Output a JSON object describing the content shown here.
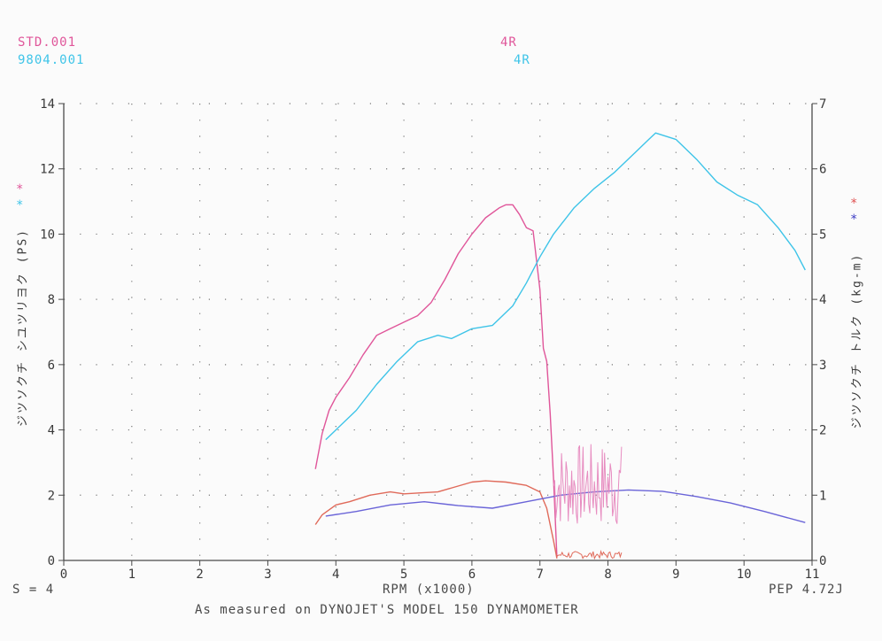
{
  "header": {
    "run1": {
      "file": "STD.001",
      "gear": "4R",
      "color": "#e0569a"
    },
    "run2": {
      "file": "9804.001",
      "gear": "4R",
      "color": "#3ec4e8"
    },
    "mark": "*"
  },
  "footer": {
    "smoothing": "S = 4",
    "xlabel": "RPM (x1000)",
    "pep": "PEP 4.72J",
    "caption": "As measured on DYNOJET'S MODEL 150 DYNAMOMETER"
  },
  "chart_data": {
    "type": "line",
    "xlabel": "RPM (x1000)",
    "ylabel_left": "ジツソクチ シユツリヨク (PS)",
    "ylabel_right": "ジツソクチ トルク (kg-m)",
    "xlim": [
      0,
      11
    ],
    "ylim_left": [
      0,
      14
    ],
    "ylim_right": [
      0,
      7
    ],
    "x_ticks": [
      0,
      1,
      2,
      3,
      4,
      5,
      6,
      7,
      8,
      9,
      10,
      11
    ],
    "y_ticks_left": [
      0,
      2,
      4,
      6,
      8,
      10,
      12,
      14
    ],
    "y_ticks_right": [
      0,
      1,
      2,
      3,
      4,
      5,
      6,
      7
    ],
    "grid": true,
    "legend_markers": {
      "left": [
        "*",
        "*"
      ],
      "right": [
        "*",
        "*"
      ]
    },
    "series": [
      {
        "name": "STD.001",
        "quantity": "power",
        "axis": "left",
        "color": "#e0569a",
        "x": [
          3.7,
          3.8,
          3.9,
          4.0,
          4.2,
          4.4,
          4.6,
          4.8,
          5.0,
          5.2,
          5.4,
          5.6,
          5.8,
          6.0,
          6.2,
          6.4,
          6.5,
          6.6,
          6.7,
          6.8,
          6.9,
          7.0,
          7.05,
          7.1,
          7.15,
          7.2,
          7.25
        ],
        "y": [
          2.8,
          3.9,
          4.6,
          5.0,
          5.6,
          6.3,
          6.9,
          7.1,
          7.3,
          7.5,
          7.9,
          8.6,
          9.4,
          10.0,
          10.5,
          10.8,
          10.9,
          10.9,
          10.6,
          10.2,
          10.1,
          8.3,
          6.5,
          6.1,
          4.5,
          2.5,
          0.1
        ]
      },
      {
        "name": "STD.001",
        "quantity": "torque",
        "axis": "right",
        "color": "#e06a5a",
        "x": [
          3.7,
          3.8,
          4.0,
          4.2,
          4.5,
          4.8,
          5.0,
          5.5,
          6.0,
          6.2,
          6.5,
          6.8,
          7.0,
          7.1,
          7.2,
          7.25
        ],
        "y": [
          0.55,
          0.7,
          0.85,
          0.9,
          1.0,
          1.05,
          1.02,
          1.05,
          1.2,
          1.22,
          1.2,
          1.15,
          1.05,
          0.8,
          0.3,
          0.03
        ]
      },
      {
        "name": "9804.001",
        "quantity": "power",
        "axis": "left",
        "color": "#3ec4e8",
        "x": [
          3.85,
          4.0,
          4.3,
          4.6,
          4.9,
          5.2,
          5.5,
          5.7,
          6.0,
          6.3,
          6.6,
          6.8,
          7.0,
          7.2,
          7.5,
          7.8,
          8.1,
          8.4,
          8.6,
          8.7,
          9.0,
          9.3,
          9.6,
          9.9,
          10.2,
          10.5,
          10.75,
          10.9
        ],
        "y": [
          3.7,
          4.0,
          4.6,
          5.4,
          6.1,
          6.7,
          6.9,
          6.8,
          7.1,
          7.2,
          7.8,
          8.5,
          9.3,
          10.0,
          10.8,
          11.4,
          11.9,
          12.5,
          12.9,
          13.1,
          12.9,
          12.3,
          11.6,
          11.2,
          10.9,
          10.2,
          9.5,
          8.9
        ]
      },
      {
        "name": "9804.001",
        "quantity": "torque",
        "axis": "right",
        "color": "#6a64d8",
        "x": [
          3.85,
          4.3,
          4.8,
          5.3,
          5.8,
          6.3,
          6.8,
          7.3,
          7.8,
          8.3,
          8.8,
          9.3,
          9.8,
          10.3,
          10.9
        ],
        "y": [
          0.68,
          0.75,
          0.85,
          0.9,
          0.84,
          0.8,
          0.9,
          1.0,
          1.05,
          1.08,
          1.06,
          0.98,
          0.88,
          0.75,
          0.58
        ]
      }
    ],
    "noise": {
      "power_x": [
        7.2,
        8.2
      ],
      "power_y": [
        1.0,
        3.6
      ],
      "power_color": "#e78cc0",
      "torque_x": [
        7.25,
        8.2
      ],
      "torque_y": [
        0.03,
        0.14
      ],
      "torque_color": "#e06a5a"
    },
    "axis_color": "#4a4a4a",
    "grid_color": "#777777"
  }
}
